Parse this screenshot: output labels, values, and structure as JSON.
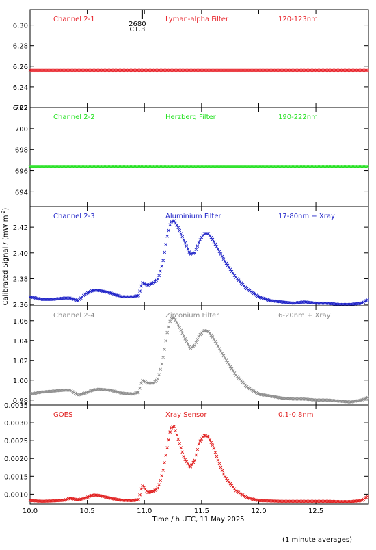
{
  "chart_data": {
    "type": "scatter",
    "xlabel": "Time / h UTC, 11 May 2025",
    "ylabel": "Calibrated Signal / (mW m",
    "ylabel_superscript": "-2",
    "ylabel_close": ")",
    "footnote": "(1 minute averages)",
    "xlim": [
      10.0,
      12.96
    ],
    "xticks": [
      10.0,
      10.5,
      11.0,
      11.5,
      12.0,
      12.5
    ],
    "xtick_labels": [
      "10.0",
      "10.5",
      "11.0",
      "11.5",
      "12.0",
      "12.5"
    ],
    "flare_marker": {
      "x": 10.98,
      "line1": "2680",
      "line2": "C1.3"
    },
    "panels": [
      {
        "channel": "Channel 2-1",
        "filter": "Lyman-alpha Filter",
        "band": "120-123nm",
        "color": "#e8232a",
        "ylim": [
          6.22,
          6.315
        ],
        "yticks": [
          6.22,
          6.24,
          6.26,
          6.28,
          6.3
        ],
        "ytick_labels": [
          "6.22",
          "6.24",
          "6.26",
          "6.28",
          "6.30"
        ],
        "series": [
          {
            "x": [
              10.0,
              12.96
            ],
            "y": [
              6.256,
              6.256
            ]
          }
        ]
      },
      {
        "channel": "Channel 2-2",
        "filter": "Herzberg Filter",
        "band": "190-222nm",
        "color": "#22e11f",
        "ylim": [
          692.6,
          702.0
        ],
        "yticks": [
          694,
          696,
          698,
          700,
          702
        ],
        "ytick_labels": [
          "694",
          "696",
          "698",
          "700",
          "702"
        ],
        "series": [
          {
            "x": [
              10.0,
              12.96
            ],
            "y": [
              696.4,
              696.4
            ]
          }
        ]
      },
      {
        "channel": "Channel 2-3",
        "filter": "Aluminium Filter",
        "band": "17-80nm + Xray",
        "color": "#1f23c8",
        "ylim": [
          2.359,
          2.436
        ],
        "yticks": [
          2.36,
          2.38,
          2.4,
          2.42
        ],
        "ytick_labels": [
          "2.36",
          "2.38",
          "2.40",
          "2.42"
        ],
        "series": [
          {
            "x": [
              10.0,
              10.1,
              10.2,
              10.3,
              10.35,
              10.42,
              10.48,
              10.55,
              10.6,
              10.7,
              10.8,
              10.9,
              10.95,
              10.98,
              11.03,
              11.08,
              11.12,
              11.16,
              11.2,
              11.23,
              11.26,
              11.3,
              11.35,
              11.4,
              11.44,
              11.48,
              11.52,
              11.56,
              11.6,
              11.65,
              11.7,
              11.8,
              11.9,
              12.0,
              12.1,
              12.2,
              12.3,
              12.4,
              12.5,
              12.6,
              12.7,
              12.8,
              12.9,
              12.96
            ],
            "y": [
              2.366,
              2.364,
              2.364,
              2.365,
              2.365,
              2.363,
              2.368,
              2.371,
              2.371,
              2.369,
              2.366,
              2.366,
              2.367,
              2.377,
              2.375,
              2.377,
              2.38,
              2.392,
              2.413,
              2.424,
              2.425,
              2.419,
              2.409,
              2.399,
              2.4,
              2.409,
              2.415,
              2.415,
              2.41,
              2.402,
              2.394,
              2.381,
              2.372,
              2.366,
              2.363,
              2.362,
              2.361,
              2.362,
              2.361,
              2.361,
              2.36,
              2.36,
              2.361,
              2.364
            ]
          }
        ]
      },
      {
        "channel": "Channel 2-4",
        "filter": "Zirconium Filter",
        "band": "6-20nm + Xray",
        "color": "#8c8c8c",
        "ylim": [
          0.975,
          1.075
        ],
        "yticks": [
          0.98,
          1.0,
          1.02,
          1.04,
          1.06
        ],
        "ytick_labels": [
          "0.98",
          "1.00",
          "1.02",
          "1.04",
          "1.06"
        ],
        "series": [
          {
            "x": [
              10.0,
              10.1,
              10.2,
              10.3,
              10.35,
              10.42,
              10.48,
              10.55,
              10.6,
              10.7,
              10.8,
              10.9,
              10.95,
              10.98,
              11.03,
              11.08,
              11.12,
              11.16,
              11.2,
              11.23,
              11.26,
              11.3,
              11.35,
              11.4,
              11.44,
              11.48,
              11.52,
              11.56,
              11.6,
              11.65,
              11.7,
              11.8,
              11.9,
              12.0,
              12.1,
              12.2,
              12.3,
              12.4,
              12.5,
              12.6,
              12.7,
              12.8,
              12.9,
              12.96
            ],
            "y": [
              0.986,
              0.988,
              0.989,
              0.99,
              0.99,
              0.985,
              0.987,
              0.99,
              0.991,
              0.99,
              0.987,
              0.986,
              0.988,
              1.0,
              0.997,
              0.997,
              1.002,
              1.02,
              1.048,
              1.062,
              1.063,
              1.055,
              1.043,
              1.032,
              1.035,
              1.045,
              1.05,
              1.049,
              1.043,
              1.033,
              1.023,
              1.005,
              0.993,
              0.986,
              0.984,
              0.982,
              0.981,
              0.981,
              0.98,
              0.98,
              0.979,
              0.978,
              0.98,
              0.983
            ]
          }
        ]
      },
      {
        "channel": "GOES",
        "filter": "Xray Sensor",
        "band": "0.1-0.8nm",
        "color": "#e11f1f",
        "ylim": [
          0.00072,
          0.0035
        ],
        "yticks": [
          0.001,
          0.0015,
          0.002,
          0.0025,
          0.003,
          0.0035
        ],
        "ytick_labels": [
          "0.0010",
          "0.0015",
          "0.0020",
          "0.0025",
          "0.0030",
          "0.0035"
        ],
        "series": [
          {
            "x": [
              10.0,
              10.1,
              10.2,
              10.3,
              10.35,
              10.42,
              10.48,
              10.55,
              10.6,
              10.7,
              10.8,
              10.9,
              10.95,
              10.98,
              11.03,
              11.08,
              11.12,
              11.16,
              11.2,
              11.23,
              11.26,
              11.3,
              11.35,
              11.4,
              11.44,
              11.48,
              11.52,
              11.56,
              11.6,
              11.65,
              11.7,
              11.8,
              11.9,
              12.0,
              12.1,
              12.2,
              12.3,
              12.4,
              12.5,
              12.6,
              12.7,
              12.8,
              12.9,
              12.96
            ],
            "y": [
              0.00082,
              0.0008,
              0.00081,
              0.00083,
              0.00089,
              0.00084,
              0.00089,
              0.00098,
              0.00097,
              0.00089,
              0.00083,
              0.00082,
              0.00085,
              0.00125,
              0.00105,
              0.00108,
              0.00118,
              0.0016,
              0.0023,
              0.00285,
              0.0029,
              0.0025,
              0.002,
              0.00175,
              0.00195,
              0.00245,
              0.00265,
              0.0026,
              0.00235,
              0.0019,
              0.0015,
              0.0011,
              0.0009,
              0.00082,
              0.00081,
              0.0008,
              0.0008,
              0.0008,
              0.0008,
              0.0008,
              0.00079,
              0.00079,
              0.00082,
              0.00095
            ]
          }
        ]
      }
    ]
  }
}
